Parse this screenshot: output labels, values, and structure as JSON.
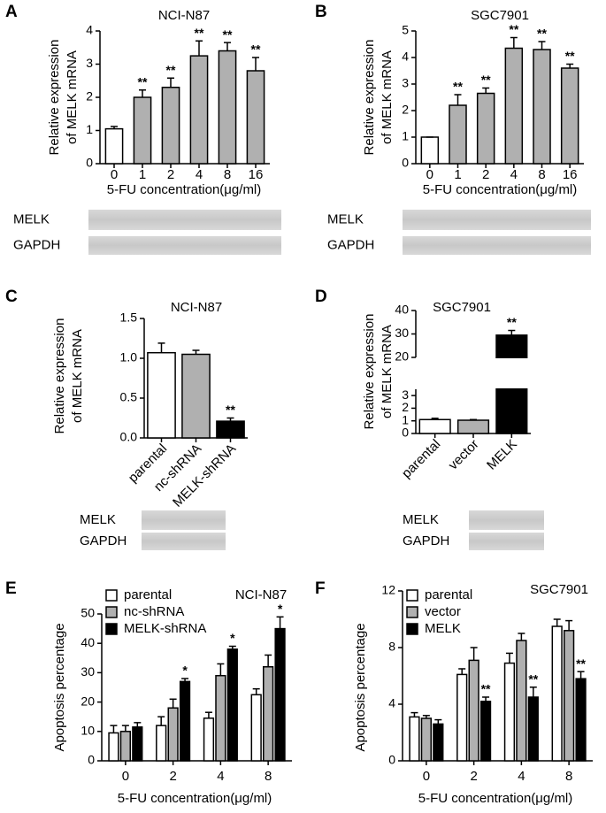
{
  "chart_data": [
    {
      "type": "bar",
      "panel_label": "A",
      "title": "NCI-N87",
      "categories": [
        "0",
        "1",
        "2",
        "4",
        "8",
        "16"
      ],
      "values": [
        1.05,
        2.0,
        2.3,
        3.25,
        3.4,
        2.8
      ],
      "errors": [
        0.07,
        0.22,
        0.28,
        0.45,
        0.25,
        0.4
      ],
      "colors": [
        "#ffffff",
        "#b0b0b0",
        "#b0b0b0",
        "#b0b0b0",
        "#b0b0b0",
        "#b0b0b0"
      ],
      "annotations": [
        null,
        "**",
        "**",
        "**",
        "**",
        "**"
      ],
      "ylim": [
        0,
        4
      ],
      "yticks": [
        0,
        1,
        2,
        3,
        4
      ],
      "ylabel": [
        "Relative expression",
        "of MELK mRNA"
      ],
      "xlabel": "5-FU concentration(μg/ml)",
      "blot_labels": [
        "MELK",
        "GAPDH"
      ]
    },
    {
      "type": "bar",
      "panel_label": "B",
      "title": "SGC7901",
      "categories": [
        "0",
        "1",
        "2",
        "4",
        "8",
        "16"
      ],
      "values": [
        1.0,
        2.2,
        2.65,
        4.35,
        4.3,
        3.6
      ],
      "errors": [
        0.0,
        0.4,
        0.2,
        0.4,
        0.3,
        0.15
      ],
      "colors": [
        "#ffffff",
        "#b0b0b0",
        "#b0b0b0",
        "#b0b0b0",
        "#b0b0b0",
        "#b0b0b0"
      ],
      "annotations": [
        null,
        "**",
        "**",
        "**",
        "**",
        "**"
      ],
      "ylim": [
        0,
        5
      ],
      "yticks": [
        0,
        1,
        2,
        3,
        4,
        5
      ],
      "ylabel": [
        "Relative expression",
        "of MELK mRNA"
      ],
      "xlabel": "5-FU concentration(μg/ml)",
      "blot_labels": [
        "MELK",
        "GAPDH"
      ]
    },
    {
      "type": "bar",
      "panel_label": "C",
      "title": "NCI-N87",
      "categories": [
        "parental",
        "nc-shRNA",
        "MELK-shRNA"
      ],
      "values": [
        1.07,
        1.05,
        0.21
      ],
      "errors": [
        0.12,
        0.05,
        0.04
      ],
      "colors": [
        "#ffffff",
        "#b0b0b0",
        "#000000"
      ],
      "annotations": [
        null,
        null,
        "**"
      ],
      "ylim": [
        0,
        1.5
      ],
      "yticks": [
        {
          "value": 0,
          "label": "0.0"
        },
        {
          "value": 0.5,
          "label": "0.5"
        },
        {
          "value": 1,
          "label": "1.0"
        },
        {
          "value": 1.5,
          "label": "1.5"
        }
      ],
      "ylabel": [
        "Relative expression",
        "of MELK mRNA"
      ],
      "blot_labels": [
        "MELK",
        "GAPDH"
      ]
    },
    {
      "type": "bar",
      "panel_label": "D",
      "title": "SGC7901",
      "categories": [
        "parental",
        "vector",
        "MELK"
      ],
      "values": [
        1.1,
        1.05,
        29.5
      ],
      "errors": [
        0.1,
        0.05,
        2
      ],
      "colors": [
        "#ffffff",
        "#b0b0b0",
        "#000000"
      ],
      "annotations": [
        null,
        null,
        "**"
      ],
      "ylim": [
        0,
        40
      ],
      "ybreak": [
        3.5,
        20
      ],
      "yticks": [
        0,
        1,
        2,
        3,
        20,
        30,
        40
      ],
      "ylabel": [
        "Relative expression",
        "of MELK mRNA"
      ],
      "blot_labels": [
        "MELK",
        "GAPDH"
      ]
    },
    {
      "type": "grouped_bar",
      "panel_label": "E",
      "title": "NCI-N87",
      "categories": [
        "0",
        "2",
        "4",
        "8"
      ],
      "series": [
        {
          "name": "parental",
          "color": "#ffffff",
          "values": [
            9.5,
            12,
            14.5,
            22.5
          ],
          "errors": [
            2.5,
            3,
            2,
            2
          ],
          "annotations": [
            null,
            null,
            null,
            null
          ]
        },
        {
          "name": "nc-shRNA",
          "color": "#b0b0b0",
          "values": [
            10,
            18,
            29,
            32
          ],
          "errors": [
            2,
            3,
            4,
            4
          ],
          "annotations": [
            null,
            null,
            null,
            null
          ]
        },
        {
          "name": "MELK-shRNA",
          "color": "#000000",
          "values": [
            11.5,
            27,
            38,
            45
          ],
          "errors": [
            1.5,
            1,
            1,
            4
          ],
          "annotations": [
            null,
            "*",
            "*",
            "*"
          ]
        }
      ],
      "ylim": [
        0,
        50
      ],
      "yticks": [
        0,
        10,
        20,
        30,
        40,
        50
      ],
      "ylabel": [
        "Apoptosis percentage"
      ],
      "xlabel": "5-FU concentration(μg/ml)",
      "legend": "upper left"
    },
    {
      "type": "grouped_bar",
      "panel_label": "F",
      "title": "SGC7901",
      "categories": [
        "0",
        "2",
        "4",
        "8"
      ],
      "series": [
        {
          "name": "parental",
          "color": "#ffffff",
          "values": [
            3.1,
            6.1,
            6.9,
            9.5
          ],
          "errors": [
            0.3,
            0.4,
            0.7,
            0.5
          ],
          "annotations": [
            null,
            null,
            null,
            null
          ]
        },
        {
          "name": "vector",
          "color": "#b0b0b0",
          "values": [
            3.0,
            7.1,
            8.5,
            9.2
          ],
          "errors": [
            0.2,
            0.9,
            0.5,
            0.7
          ],
          "annotations": [
            null,
            null,
            null,
            null
          ]
        },
        {
          "name": "MELK",
          "color": "#000000",
          "values": [
            2.6,
            4.2,
            4.5,
            5.8
          ],
          "errors": [
            0.3,
            0.3,
            0.7,
            0.5
          ],
          "annotations": [
            null,
            "**",
            "**",
            "**"
          ]
        }
      ],
      "ylim": [
        0,
        12
      ],
      "yticks": [
        0,
        4,
        8,
        12
      ],
      "ylabel": [
        "Apoptosis percentage"
      ],
      "xlabel": "5-FU concentration(μg/ml)",
      "legend": "upper left"
    }
  ]
}
